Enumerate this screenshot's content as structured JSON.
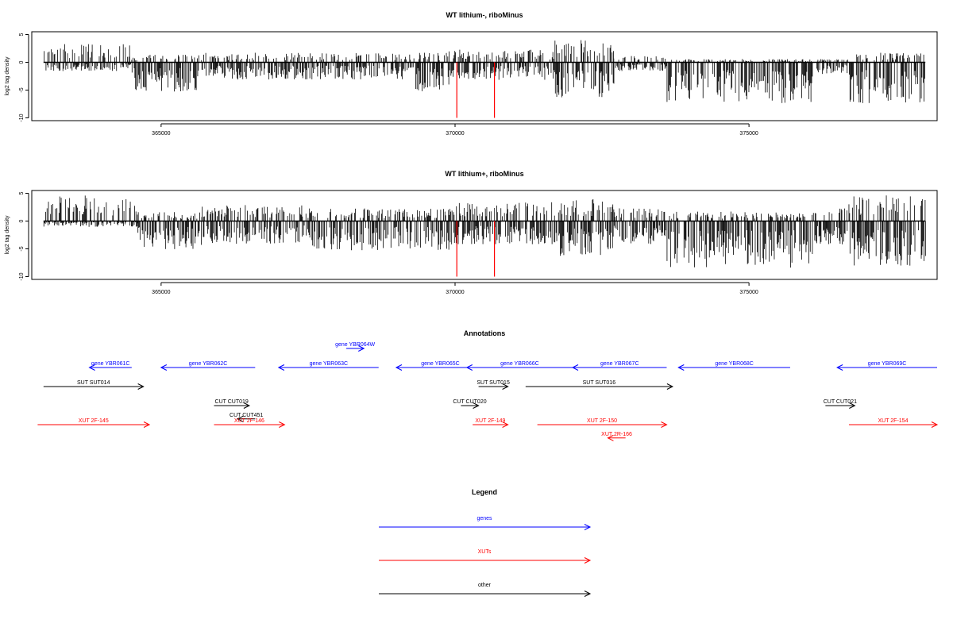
{
  "chart_data": [
    {
      "type": "bar",
      "title": "WT lithium-, riboMinus",
      "ylabel": "log2 tag density",
      "xlim": [
        362800,
        378200
      ],
      "ylim": [
        -10.5,
        5.5
      ],
      "x_ticks": [
        365000,
        370000,
        375000
      ],
      "y_ticks": [
        5,
        0,
        -5,
        -10
      ],
      "series_color": "#000000",
      "highlight_color": "#ff0000",
      "highlights": [
        {
          "x": 370030,
          "y": -10
        },
        {
          "x": 370670,
          "y": -10
        }
      ],
      "density_profile": [
        {
          "from": 362800,
          "to": 363000,
          "pos": 0,
          "neg": 0
        },
        {
          "from": 363000,
          "to": 364500,
          "pos": 3,
          "neg": 1.5
        },
        {
          "from": 364500,
          "to": 365700,
          "pos": 1.2,
          "neg": 5
        },
        {
          "from": 365700,
          "to": 369300,
          "pos": 1.5,
          "neg": 3
        },
        {
          "from": 369300,
          "to": 369900,
          "pos": 1.5,
          "neg": 5
        },
        {
          "from": 369900,
          "to": 371700,
          "pos": 2,
          "neg": 3
        },
        {
          "from": 371700,
          "to": 372700,
          "pos": 3.5,
          "neg": 6
        },
        {
          "from": 372700,
          "to": 373600,
          "pos": 1,
          "neg": 1.5
        },
        {
          "from": 373600,
          "to": 376100,
          "pos": 0.5,
          "neg": 7
        },
        {
          "from": 376100,
          "to": 376700,
          "pos": 0.5,
          "neg": 2
        },
        {
          "from": 376700,
          "to": 378000,
          "pos": 1.5,
          "neg": 7
        }
      ]
    },
    {
      "type": "bar",
      "title": "WT lithium+, riboMinus",
      "ylabel": "log2 tag density",
      "xlim": [
        362800,
        378200
      ],
      "ylim": [
        -10.5,
        5.5
      ],
      "x_ticks": [
        365000,
        370000,
        375000
      ],
      "y_ticks": [
        5,
        0,
        -5,
        -10
      ],
      "series_color": "#000000",
      "highlight_color": "#ff0000",
      "highlights": [
        {
          "x": 370030,
          "y": -10
        },
        {
          "x": 370670,
          "y": -10
        }
      ],
      "density_profile": [
        {
          "from": 362800,
          "to": 363000,
          "pos": 0,
          "neg": 0
        },
        {
          "from": 363000,
          "to": 364600,
          "pos": 4,
          "neg": 1
        },
        {
          "from": 364600,
          "to": 365700,
          "pos": 1.5,
          "neg": 5
        },
        {
          "from": 365700,
          "to": 367500,
          "pos": 2.5,
          "neg": 4
        },
        {
          "from": 367500,
          "to": 369300,
          "pos": 2,
          "neg": 5
        },
        {
          "from": 369300,
          "to": 370000,
          "pos": 2,
          "neg": 5
        },
        {
          "from": 370000,
          "to": 371700,
          "pos": 3,
          "neg": 4
        },
        {
          "from": 371700,
          "to": 372700,
          "pos": 3.5,
          "neg": 6
        },
        {
          "from": 372700,
          "to": 373600,
          "pos": 2,
          "neg": 4
        },
        {
          "from": 373600,
          "to": 376100,
          "pos": 1.5,
          "neg": 8
        },
        {
          "from": 376100,
          "to": 376700,
          "pos": 2,
          "neg": 4
        },
        {
          "from": 376700,
          "to": 378000,
          "pos": 4,
          "neg": 8
        }
      ]
    }
  ],
  "annotations": {
    "title": "Annotations",
    "features": [
      {
        "label": "gene YBR061C",
        "start": 363780,
        "end": 364500,
        "strand": "-",
        "row": 0,
        "color": "#0000ff"
      },
      {
        "label": "gene YBR062C",
        "start": 365000,
        "end": 366600,
        "strand": "-",
        "row": 0,
        "color": "#0000ff"
      },
      {
        "label": "gene YBR063C",
        "start": 367000,
        "end": 368700,
        "strand": "-",
        "row": 0,
        "color": "#0000ff"
      },
      {
        "label": "gene YBR064W",
        "start": 368150,
        "end": 368450,
        "strand": "+",
        "row": -1,
        "color": "#0000ff"
      },
      {
        "label": "gene YBR065C",
        "start": 369000,
        "end": 370500,
        "strand": "-",
        "row": 0,
        "color": "#0000ff"
      },
      {
        "label": "gene YBR066C",
        "start": 370200,
        "end": 372000,
        "strand": "-",
        "row": 0,
        "color": "#0000ff"
      },
      {
        "label": "gene YBR067C",
        "start": 372000,
        "end": 373600,
        "strand": "-",
        "row": 0,
        "color": "#0000ff"
      },
      {
        "label": "gene YBR068C",
        "start": 373800,
        "end": 375700,
        "strand": "-",
        "row": 0,
        "color": "#0000ff"
      },
      {
        "label": "gene YBR069C",
        "start": 376500,
        "end": 378200,
        "strand": "-",
        "row": 0,
        "color": "#0000ff"
      },
      {
        "label": "SUT SUT014",
        "start": 363000,
        "end": 364700,
        "strand": "+",
        "row": 1,
        "color": "#000000"
      },
      {
        "label": "SUT SUT015",
        "start": 370400,
        "end": 370900,
        "strand": "+",
        "row": 1,
        "color": "#000000"
      },
      {
        "label": "SUT SUT016",
        "start": 371200,
        "end": 373700,
        "strand": "+",
        "row": 1,
        "color": "#000000"
      },
      {
        "label": "CUT CUT019",
        "start": 365900,
        "end": 366500,
        "strand": "+",
        "row": 2,
        "color": "#000000"
      },
      {
        "label": "CUT CUT451",
        "start": 366300,
        "end": 366600,
        "strand": "-",
        "row": 2.7,
        "color": "#000000"
      },
      {
        "label": "CUT CUT020",
        "start": 370100,
        "end": 370400,
        "strand": "+",
        "row": 2,
        "color": "#000000"
      },
      {
        "label": "CUT CUT021",
        "start": 376300,
        "end": 376800,
        "strand": "+",
        "row": 2,
        "color": "#000000"
      },
      {
        "label": "XUT 2F-145",
        "start": 362900,
        "end": 364800,
        "strand": "+",
        "row": 3,
        "color": "#ff0000"
      },
      {
        "label": "XUT 2F-146",
        "start": 365900,
        "end": 367100,
        "strand": "+",
        "row": 3,
        "color": "#ff0000"
      },
      {
        "label": "XUT 2F-149",
        "start": 370300,
        "end": 370900,
        "strand": "+",
        "row": 3,
        "color": "#ff0000"
      },
      {
        "label": "XUT 2F-150",
        "start": 371400,
        "end": 373600,
        "strand": "+",
        "row": 3,
        "color": "#ff0000"
      },
      {
        "label": "XUT 2R-166",
        "start": 372600,
        "end": 372900,
        "strand": "-",
        "row": 3.7,
        "color": "#ff0000"
      },
      {
        "label": "XUT 2F-154",
        "start": 376700,
        "end": 378200,
        "strand": "+",
        "row": 3,
        "color": "#ff0000"
      }
    ]
  },
  "legend": {
    "title": "Legend",
    "items": [
      {
        "label": "genes",
        "color": "#0000ff"
      },
      {
        "label": "XUTs",
        "color": "#ff0000"
      },
      {
        "label": "other",
        "color": "#000000"
      }
    ]
  }
}
